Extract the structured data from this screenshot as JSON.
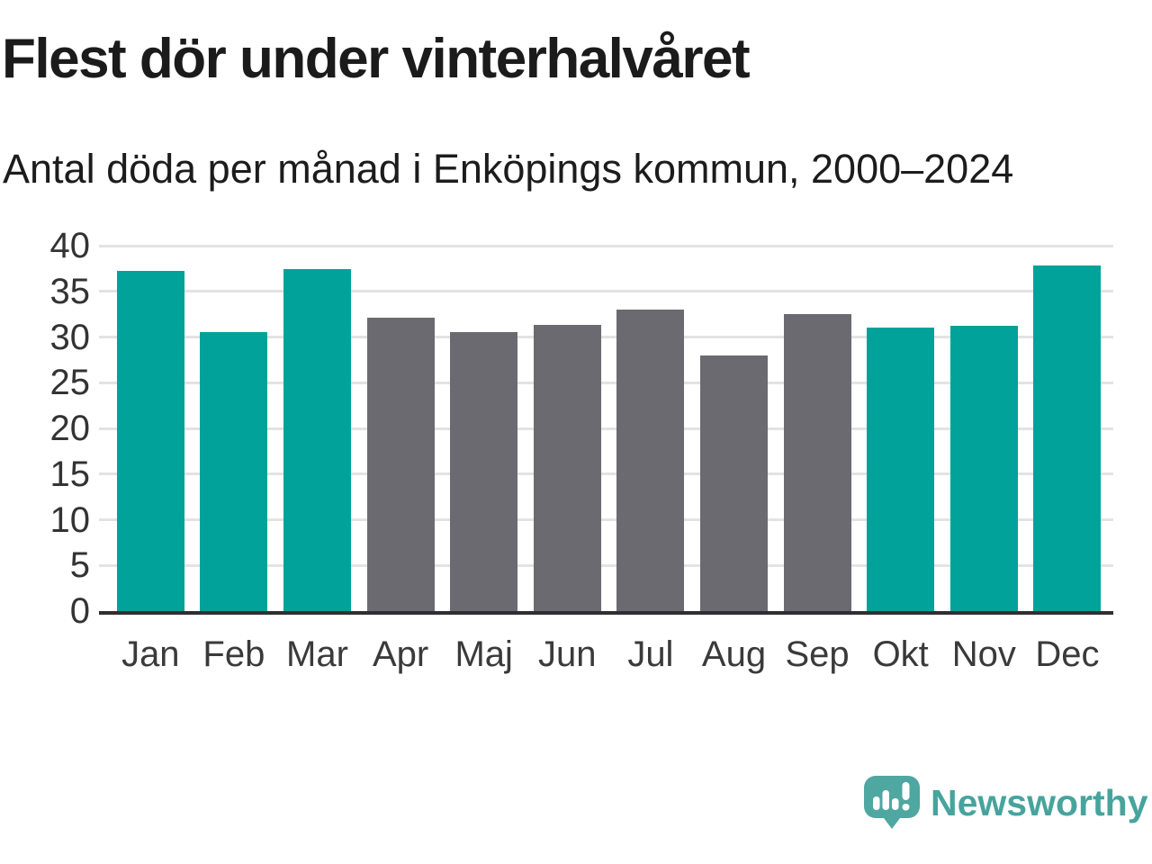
{
  "header": {
    "title": "Flest dör under vinterhalvåret",
    "subtitle": "Antal döda per månad i Enköpings kommun, 2000–2024"
  },
  "chart_data": {
    "type": "bar",
    "title": "Flest dör under vinterhalvåret",
    "subtitle": "Antal döda per månad i Enköpings kommun, 2000–2024",
    "categories": [
      "Jan",
      "Feb",
      "Mar",
      "Apr",
      "Maj",
      "Jun",
      "Jul",
      "Aug",
      "Sep",
      "Okt",
      "Nov",
      "Dec"
    ],
    "values": [
      37.2,
      30.5,
      37.4,
      32.1,
      30.5,
      31.3,
      33.0,
      28.0,
      32.5,
      31.0,
      31.2,
      37.8
    ],
    "bar_color_keys": [
      "winter",
      "winter",
      "winter",
      "summer",
      "summer",
      "summer",
      "summer",
      "summer",
      "summer",
      "winter",
      "winter",
      "winter"
    ],
    "palette": {
      "winter": "#00a29a",
      "summer": "#6a6a70"
    },
    "ylim": [
      0,
      40
    ],
    "yticks": [
      0,
      5,
      10,
      15,
      20,
      25,
      30,
      35,
      40
    ],
    "xlabel": "",
    "ylabel": "",
    "grid": "horizontal",
    "legend": "none"
  },
  "footer": {
    "brand": "Newsworthy"
  },
  "colors": {
    "accent_teal": "#00a29a",
    "bar_gray": "#6a6a70",
    "logo_teal": "#46a49d",
    "axis_line": "#2f2f33",
    "gridline": "#e3e3e3",
    "title_text": "#1b1b1b"
  }
}
